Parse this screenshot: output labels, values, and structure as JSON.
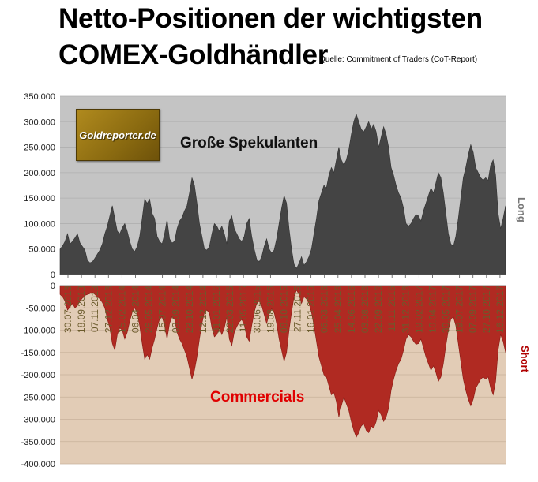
{
  "title_line1": "Netto-Positionen der wichtigsten",
  "title_line2": "COMEX-Goldhändler",
  "source": "Quelle: Commitment of Traders (CoT-Report)",
  "logo_text": "Goldreporter.de",
  "colors": {
    "long_fill": "#444444",
    "short_fill": "#b02a22",
    "upper_bg": "#c4c4c4",
    "lower_bg": "#e2ccb6",
    "label_red": "#e00000"
  },
  "chart_data": {
    "type": "area",
    "series": [
      {
        "name": "Große Spekulanten",
        "side_label": "Long",
        "values": [
          50000,
          56000,
          65000,
          80000,
          60000,
          65000,
          72000,
          80000,
          62000,
          55000,
          48000,
          28000,
          23000,
          25000,
          32000,
          40000,
          48000,
          60000,
          80000,
          95000,
          115000,
          135000,
          110000,
          85000,
          80000,
          92000,
          100000,
          85000,
          65000,
          50000,
          45000,
          55000,
          75000,
          110000,
          148000,
          140000,
          148000,
          120000,
          110000,
          75000,
          65000,
          60000,
          80000,
          108000,
          70000,
          62000,
          65000,
          90000,
          105000,
          112000,
          125000,
          135000,
          160000,
          190000,
          175000,
          140000,
          100000,
          75000,
          50000,
          48000,
          55000,
          80000,
          100000,
          95000,
          85000,
          95000,
          80000,
          60000,
          105000,
          115000,
          90000,
          80000,
          70000,
          65000,
          75000,
          100000,
          110000,
          75000,
          50000,
          30000,
          25000,
          35000,
          55000,
          70000,
          50000,
          42000,
          48000,
          70000,
          100000,
          130000,
          155000,
          140000,
          90000,
          50000,
          20000,
          12000,
          22000,
          35000,
          18000,
          25000,
          35000,
          50000,
          80000,
          110000,
          145000,
          160000,
          175000,
          170000,
          195000,
          210000,
          200000,
          225000,
          250000,
          225000,
          215000,
          225000,
          245000,
          275000,
          300000,
          315000,
          300000,
          285000,
          280000,
          290000,
          300000,
          285000,
          295000,
          280000,
          250000,
          270000,
          290000,
          275000,
          250000,
          210000,
          195000,
          175000,
          160000,
          150000,
          130000,
          100000,
          95000,
          100000,
          110000,
          118000,
          115000,
          105000,
          125000,
          140000,
          155000,
          170000,
          160000,
          180000,
          200000,
          190000,
          160000,
          120000,
          80000,
          60000,
          55000,
          75000,
          110000,
          150000,
          190000,
          210000,
          235000,
          255000,
          240000,
          210000,
          200000,
          190000,
          185000,
          190000,
          185000,
          215000,
          225000,
          195000,
          120000,
          90000,
          110000,
          135000
        ],
        "ylim": [
          0,
          350000
        ],
        "yticks": [
          "0",
          "50.000",
          "100.000",
          "150.000",
          "200.000",
          "250.000",
          "300.000",
          "350.000"
        ]
      },
      {
        "name": "Commercials",
        "side_label": "Short",
        "values": [
          -20000,
          -25000,
          -35000,
          -55000,
          -48000,
          -40000,
          -50000,
          -45000,
          -35000,
          -28000,
          -22000,
          -20000,
          -18000,
          -15000,
          -20000,
          -25000,
          -30000,
          -38000,
          -50000,
          -75000,
          -95000,
          -130000,
          -145000,
          -110000,
          -95000,
          -100000,
          -120000,
          -105000,
          -80000,
          -60000,
          -50000,
          -62000,
          -90000,
          -130000,
          -165000,
          -155000,
          -165000,
          -140000,
          -120000,
          -95000,
          -75000,
          -70000,
          -90000,
          -120000,
          -85000,
          -70000,
          -75000,
          -105000,
          -120000,
          -130000,
          -145000,
          -160000,
          -185000,
          -210000,
          -190000,
          -160000,
          -120000,
          -85000,
          -60000,
          -55000,
          -62000,
          -95000,
          -115000,
          -110000,
          -95000,
          -110000,
          -95000,
          -70000,
          -120000,
          -135000,
          -105000,
          -92000,
          -82000,
          -76000,
          -88000,
          -115000,
          -125000,
          -90000,
          -60000,
          -40000,
          -35000,
          -45000,
          -65000,
          -85000,
          -65000,
          -52000,
          -60000,
          -85000,
          -120000,
          -145000,
          -170000,
          -150000,
          -100000,
          -60000,
          -25000,
          -10000,
          -20000,
          -40000,
          -25000,
          -30000,
          -40000,
          -60000,
          -90000,
          -125000,
          -160000,
          -180000,
          -200000,
          -205000,
          -225000,
          -245000,
          -240000,
          -260000,
          -295000,
          -270000,
          -250000,
          -265000,
          -280000,
          -305000,
          -325000,
          -340000,
          -330000,
          -315000,
          -310000,
          -325000,
          -330000,
          -315000,
          -320000,
          -305000,
          -280000,
          -290000,
          -305000,
          -295000,
          -275000,
          -235000,
          -210000,
          -190000,
          -175000,
          -165000,
          -145000,
          -120000,
          -110000,
          -115000,
          -125000,
          -132000,
          -130000,
          -120000,
          -140000,
          -160000,
          -175000,
          -190000,
          -180000,
          -195000,
          -215000,
          -205000,
          -175000,
          -135000,
          -100000,
          -75000,
          -70000,
          -90000,
          -130000,
          -170000,
          -210000,
          -235000,
          -255000,
          -270000,
          -255000,
          -230000,
          -220000,
          -210000,
          -205000,
          -210000,
          -205000,
          -230000,
          -245000,
          -215000,
          -145000,
          -110000,
          -125000,
          -150000
        ],
        "ylim": [
          -400000,
          0
        ],
        "yticks": [
          "0",
          "-50.000",
          "-100.000",
          "-150.000",
          "-200.000",
          "-250.000",
          "-300.000",
          "-350.000",
          "-400.000"
        ]
      }
    ],
    "x_tick_labels": [
      "30.07.2013",
      "18.09.2013",
      "07.11.2013",
      "27.12.2013",
      "15.02.2014",
      "06.04.2014",
      "26.05.2014",
      "15.07.2014",
      "03.09.2014",
      "23.10.2014",
      "12.12.2014",
      "31.01.2015",
      "22.03.2015",
      "11.05.2015",
      "30.06.2015",
      "19.08.2015",
      "08.10.2015",
      "27.11.2015",
      "16.01.2016",
      "06.03.2016",
      "25.04.2016",
      "14.06.2016",
      "03.08.2016",
      "22.09.2016",
      "11.11.2016",
      "31.12.2016",
      "19.02.2017",
      "10.04.2017",
      "30.05.2017",
      "19.07.2017",
      "07.09.2017",
      "27.10.2017",
      "16.12.2017"
    ],
    "grid": true,
    "legend": "inline labels"
  }
}
